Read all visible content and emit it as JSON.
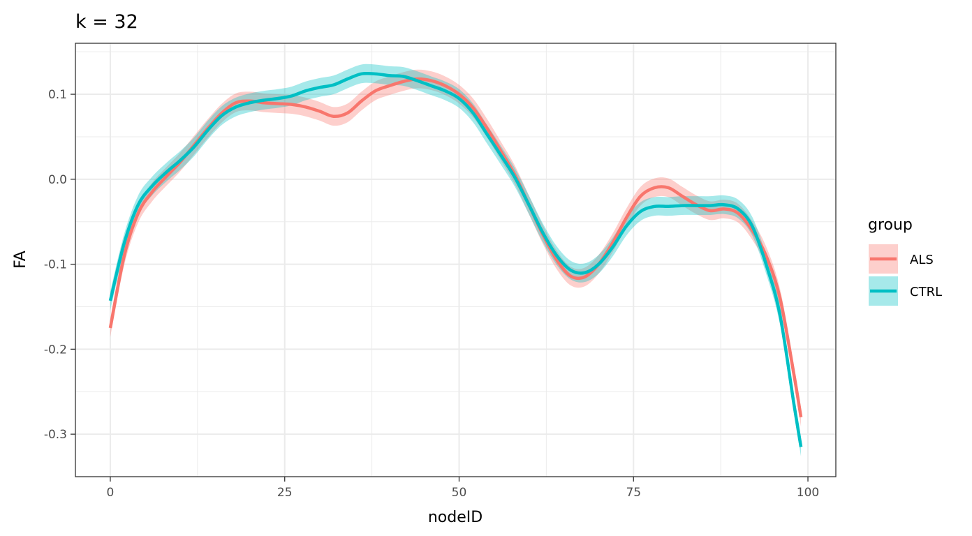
{
  "chart_data": {
    "type": "line",
    "title": "k = 32",
    "xlabel": "nodeID",
    "ylabel": "FA",
    "xlim": [
      -5,
      104
    ],
    "ylim": [
      -0.35,
      0.16
    ],
    "x_ticks": [
      0,
      25,
      50,
      75,
      100
    ],
    "x_tick_labels": [
      "0",
      "25",
      "50",
      "75",
      "100"
    ],
    "y_ticks": [
      -0.3,
      -0.2,
      -0.1,
      0.0,
      0.1
    ],
    "y_tick_labels": [
      "-0.3",
      "-0.2",
      "-0.1",
      "0.0",
      "0.1"
    ],
    "grid": true,
    "legend": {
      "title": "group",
      "position": "right"
    },
    "series": [
      {
        "name": "ALS",
        "color": "#F8766D",
        "x": [
          0,
          2,
          4,
          6,
          8,
          10,
          12,
          14,
          16,
          18,
          20,
          22,
          24,
          26,
          28,
          30,
          32,
          34,
          36,
          38,
          40,
          42,
          44,
          46,
          48,
          50,
          52,
          54,
          56,
          58,
          60,
          62,
          64,
          66,
          68,
          70,
          72,
          74,
          76,
          78,
          80,
          82,
          84,
          86,
          88,
          90,
          92,
          94,
          96,
          98,
          99
        ],
        "values": [
          -0.175,
          -0.09,
          -0.04,
          -0.015,
          0.003,
          0.02,
          0.04,
          0.06,
          0.078,
          0.09,
          0.092,
          0.09,
          0.089,
          0.088,
          0.085,
          0.08,
          0.074,
          0.078,
          0.092,
          0.104,
          0.11,
          0.115,
          0.118,
          0.116,
          0.11,
          0.1,
          0.084,
          0.06,
          0.033,
          0.005,
          -0.03,
          -0.065,
          -0.095,
          -0.114,
          -0.115,
          -0.1,
          -0.075,
          -0.045,
          -0.02,
          -0.01,
          -0.01,
          -0.02,
          -0.03,
          -0.037,
          -0.035,
          -0.04,
          -0.06,
          -0.09,
          -0.14,
          -0.23,
          -0.28
        ],
        "band_halfwidth": 0.011
      },
      {
        "name": "CTRL",
        "color": "#00BFC4",
        "x": [
          0,
          2,
          4,
          6,
          8,
          10,
          12,
          14,
          16,
          18,
          20,
          22,
          24,
          26,
          28,
          30,
          32,
          34,
          36,
          38,
          40,
          42,
          44,
          46,
          48,
          50,
          52,
          54,
          56,
          58,
          60,
          62,
          64,
          66,
          68,
          70,
          72,
          74,
          76,
          78,
          80,
          82,
          84,
          86,
          88,
          90,
          92,
          94,
          96,
          98,
          99
        ],
        "values": [
          -0.143,
          -0.075,
          -0.03,
          -0.008,
          0.008,
          0.022,
          0.038,
          0.058,
          0.075,
          0.085,
          0.09,
          0.093,
          0.095,
          0.098,
          0.104,
          0.108,
          0.111,
          0.118,
          0.124,
          0.124,
          0.122,
          0.121,
          0.116,
          0.11,
          0.104,
          0.095,
          0.078,
          0.053,
          0.028,
          0.002,
          -0.03,
          -0.063,
          -0.09,
          -0.107,
          -0.11,
          -0.1,
          -0.08,
          -0.055,
          -0.038,
          -0.032,
          -0.032,
          -0.031,
          -0.031,
          -0.031,
          -0.03,
          -0.035,
          -0.055,
          -0.1,
          -0.16,
          -0.265,
          -0.315
        ],
        "band_halfwidth": 0.011
      }
    ]
  }
}
